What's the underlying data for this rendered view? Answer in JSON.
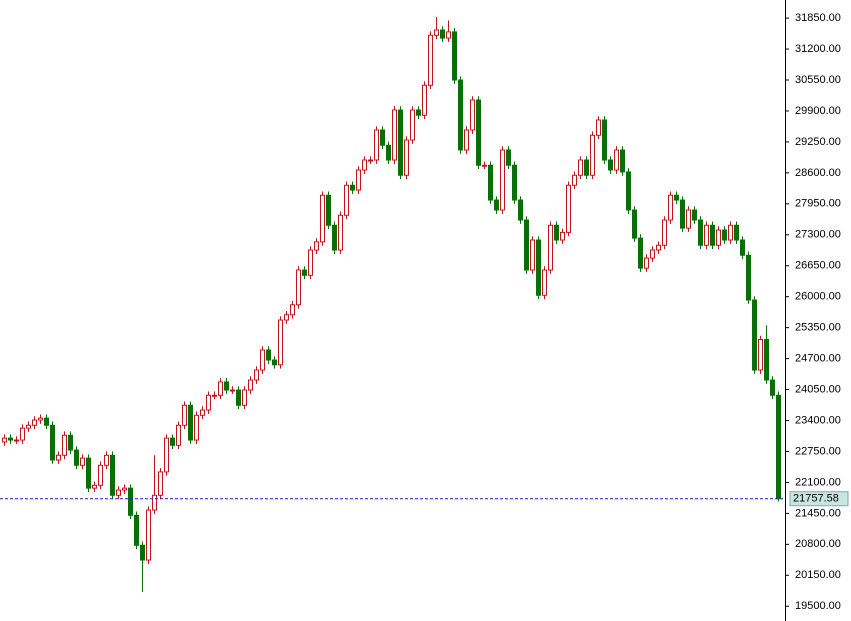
{
  "chart_data": {
    "type": "candlestick",
    "open": [
      22950,
      23030,
      22990,
      22990,
      23240,
      23300,
      23410,
      23450,
      23300,
      22570,
      22670,
      23090,
      22780,
      22460,
      22610,
      21980,
      22040,
      22460,
      22670,
      21830,
      21940,
      21980,
      21410,
      20780,
      20470,
      21520,
      21830,
      22320,
      23030,
      22880,
      23300,
      23720,
      22990,
      23510,
      23620,
      23930,
      23930,
      24210,
      24040,
      24040,
      23720,
      24040,
      24250,
      24460,
      24880,
      24670,
      24570,
      25510,
      25620,
      25830,
      26560,
      26450,
      26980,
      27150,
      28130,
      27500,
      26980,
      27710,
      28340,
      28240,
      28660,
      28870,
      28870,
      29500,
      29180,
      28870,
      29920,
      28550,
      29290,
      29920,
      29810,
      30440,
      31490,
      31600,
      31430,
      31560,
      30550,
      29080,
      29500,
      30130,
      28760,
      28760,
      28030,
      27820,
      29080,
      28760,
      28030,
      27610,
      26560,
      27190,
      26030,
      26560,
      27500,
      27190,
      27350,
      28340,
      28550,
      28870,
      28550,
      29390,
      29710,
      28870,
      28660,
      29080,
      28620,
      27820,
      27230,
      26600,
      26810,
      26980,
      27080,
      27610,
      28130,
      28030,
      27440,
      27820,
      27610,
      27080,
      27500,
      27080,
      27400,
      27190,
      27500,
      27190,
      26870,
      25930,
      24460,
      25100,
      24250,
      23930
    ],
    "high": [
      23110,
      23110,
      23070,
      23320,
      23380,
      23490,
      23530,
      23530,
      23380,
      22750,
      23170,
      23170,
      22860,
      22690,
      22690,
      22120,
      22540,
      22750,
      22750,
      22020,
      22060,
      22060,
      21490,
      20860,
      21600,
      22670,
      22400,
      23110,
      23110,
      23380,
      23800,
      23800,
      23590,
      23700,
      24010,
      24010,
      24290,
      24290,
      24120,
      24120,
      24120,
      24330,
      24540,
      24960,
      24960,
      24750,
      25590,
      25700,
      25910,
      26640,
      26640,
      27060,
      27230,
      28210,
      28210,
      27580,
      27790,
      28420,
      28420,
      28740,
      28950,
      28950,
      29580,
      29580,
      29260,
      30000,
      30000,
      29370,
      30000,
      30000,
      30520,
      31570,
      31870,
      31680,
      31800,
      31640,
      30630,
      29580,
      30210,
      30210,
      28840,
      28840,
      28110,
      29160,
      29160,
      28840,
      28110,
      27690,
      27270,
      27270,
      26640,
      27580,
      27580,
      27430,
      28420,
      28630,
      28950,
      28950,
      29470,
      29790,
      29790,
      28950,
      29160,
      29160,
      28700,
      27900,
      27310,
      26890,
      27060,
      27160,
      27690,
      28210,
      28210,
      28110,
      27900,
      27900,
      27690,
      27580,
      27580,
      27480,
      27480,
      27580,
      27580,
      27270,
      26950,
      26010,
      25180,
      25400,
      24330,
      24010
    ],
    "low": [
      22870,
      22910,
      22910,
      22910,
      23160,
      23220,
      23330,
      23220,
      22490,
      22490,
      22590,
      22700,
      22380,
      22380,
      21900,
      21900,
      21960,
      22380,
      21750,
      21750,
      21860,
      21330,
      20700,
      19800,
      20390,
      21440,
      21750,
      22240,
      22800,
      22800,
      23220,
      22910,
      22910,
      23430,
      23540,
      23850,
      23850,
      23960,
      23960,
      23640,
      23640,
      23960,
      24170,
      24380,
      24590,
      24490,
      24490,
      25430,
      25540,
      25750,
      26370,
      26370,
      26900,
      27070,
      27420,
      26900,
      26900,
      27630,
      28160,
      28160,
      28580,
      28790,
      28790,
      29100,
      28790,
      28790,
      28470,
      28470,
      29210,
      29730,
      29730,
      30360,
      31410,
      31350,
      31350,
      30470,
      29000,
      29000,
      29420,
      28680,
      28680,
      27950,
      27740,
      27740,
      28680,
      27950,
      27530,
      26480,
      26480,
      25950,
      25950,
      26480,
      27110,
      27110,
      27270,
      28260,
      28470,
      28470,
      28470,
      29310,
      28790,
      28580,
      28580,
      28540,
      27740,
      27150,
      26520,
      26520,
      26730,
      26900,
      27000,
      27530,
      27950,
      27360,
      27360,
      27530,
      27000,
      27000,
      27000,
      27000,
      27110,
      27110,
      27110,
      26790,
      25850,
      24380,
      24380,
      24170,
      23850,
      21700
    ],
    "close": [
      23030,
      22990,
      22990,
      23240,
      23300,
      23410,
      23450,
      23300,
      22570,
      22670,
      23090,
      22780,
      22460,
      22610,
      21980,
      22040,
      22460,
      22670,
      21830,
      21940,
      21980,
      21410,
      20780,
      20470,
      21520,
      21830,
      22320,
      23030,
      22880,
      23300,
      23720,
      22990,
      23510,
      23620,
      23930,
      23930,
      24210,
      24040,
      24040,
      23720,
      24040,
      24250,
      24460,
      24880,
      24670,
      24570,
      25510,
      25620,
      25830,
      26560,
      26450,
      26980,
      27150,
      28130,
      27500,
      26980,
      27710,
      28340,
      28240,
      28660,
      28870,
      28870,
      29500,
      29180,
      28870,
      29920,
      28550,
      29290,
      29920,
      29810,
      30440,
      31490,
      31600,
      31430,
      31560,
      30550,
      29080,
      29500,
      30130,
      28760,
      28760,
      28030,
      27820,
      29080,
      28760,
      28030,
      27610,
      26560,
      27190,
      26030,
      26560,
      27500,
      27190,
      27350,
      28340,
      28550,
      28870,
      28550,
      29390,
      29710,
      28870,
      28660,
      29080,
      28620,
      27820,
      27230,
      26600,
      26810,
      26980,
      27080,
      27610,
      28130,
      28030,
      27440,
      27820,
      27610,
      27080,
      27500,
      27080,
      27400,
      27190,
      27500,
      27190,
      26870,
      25930,
      24460,
      25100,
      24250,
      23930,
      21757.58
    ],
    "up_color": "#c0141e",
    "down_color": "#0a6e0a",
    "last_price": 21757.58,
    "price_line_color": "#1a1acc",
    "ylim": [
      19190,
      32230
    ],
    "yticks": [
      {
        "value": 19500,
        "label": "19500.00"
      },
      {
        "value": 20150,
        "label": "20150.00"
      },
      {
        "value": 20800,
        "label": "20800.00"
      },
      {
        "value": 21450,
        "label": "21450.00"
      },
      {
        "value": 22100,
        "label": "22100.00"
      },
      {
        "value": 22750,
        "label": "22750.00"
      },
      {
        "value": 23400,
        "label": "23400.00"
      },
      {
        "value": 24050,
        "label": "24050.00"
      },
      {
        "value": 24700,
        "label": "24700.00"
      },
      {
        "value": 25350,
        "label": "25350.00"
      },
      {
        "value": 26000,
        "label": "26000.00"
      },
      {
        "value": 26650,
        "label": "26650.00"
      },
      {
        "value": 27300,
        "label": "27300.00"
      },
      {
        "value": 27950,
        "label": "27950.00"
      },
      {
        "value": 28600,
        "label": "28600.00"
      },
      {
        "value": 29250,
        "label": "29250.00"
      },
      {
        "value": 29900,
        "label": "29900.00"
      },
      {
        "value": 30550,
        "label": "30550.00"
      },
      {
        "value": 31200,
        "label": "31200.00"
      },
      {
        "value": 31850,
        "label": "31850.00"
      }
    ]
  }
}
